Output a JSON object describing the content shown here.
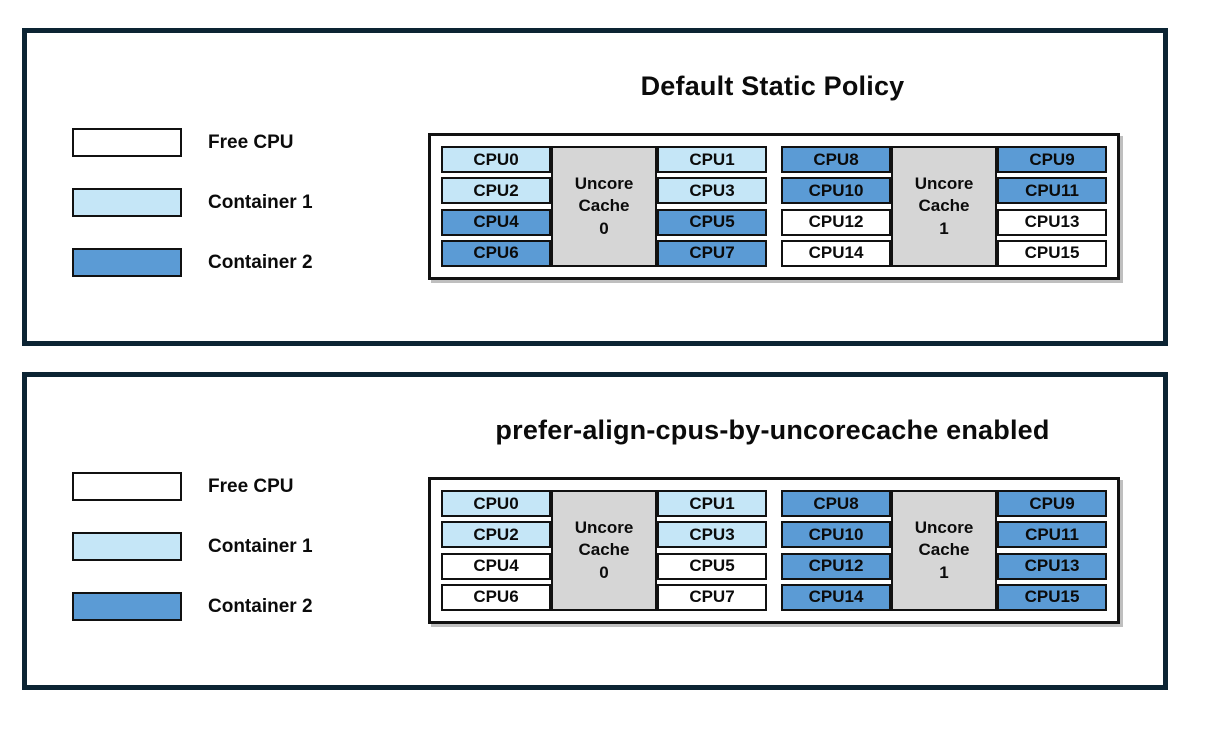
{
  "colors": {
    "free": "#ffffff",
    "container1": "#c5e6f7",
    "container2": "#5b9bd5",
    "uncore": "#d6d6d6",
    "cell_border": "#111111",
    "panel_border": "#0c2433"
  },
  "legend": {
    "items": [
      {
        "label": "Free CPU",
        "state": "free"
      },
      {
        "label": "Container 1",
        "state": "container1"
      },
      {
        "label": "Container 2",
        "state": "container2"
      }
    ]
  },
  "panels": [
    {
      "title": "Default Static Policy",
      "groups": [
        {
          "uncore_lines": [
            "Uncore",
            "Cache",
            "0"
          ],
          "left": [
            {
              "label": "CPU0",
              "state": "container1"
            },
            {
              "label": "CPU2",
              "state": "container1"
            },
            {
              "label": "CPU4",
              "state": "container2"
            },
            {
              "label": "CPU6",
              "state": "container2"
            }
          ],
          "right": [
            {
              "label": "CPU1",
              "state": "container1"
            },
            {
              "label": "CPU3",
              "state": "container1"
            },
            {
              "label": "CPU5",
              "state": "container2"
            },
            {
              "label": "CPU7",
              "state": "container2"
            }
          ]
        },
        {
          "uncore_lines": [
            "Uncore",
            "Cache",
            "1"
          ],
          "left": [
            {
              "label": "CPU8",
              "state": "container2"
            },
            {
              "label": "CPU10",
              "state": "container2"
            },
            {
              "label": "CPU12",
              "state": "free"
            },
            {
              "label": "CPU14",
              "state": "free"
            }
          ],
          "right": [
            {
              "label": "CPU9",
              "state": "container2"
            },
            {
              "label": "CPU11",
              "state": "container2"
            },
            {
              "label": "CPU13",
              "state": "free"
            },
            {
              "label": "CPU15",
              "state": "free"
            }
          ]
        }
      ]
    },
    {
      "title": "prefer-align-cpus-by-uncorecache enabled",
      "groups": [
        {
          "uncore_lines": [
            "Uncore",
            "Cache",
            "0"
          ],
          "left": [
            {
              "label": "CPU0",
              "state": "container1"
            },
            {
              "label": "CPU2",
              "state": "container1"
            },
            {
              "label": "CPU4",
              "state": "free"
            },
            {
              "label": "CPU6",
              "state": "free"
            }
          ],
          "right": [
            {
              "label": "CPU1",
              "state": "container1"
            },
            {
              "label": "CPU3",
              "state": "container1"
            },
            {
              "label": "CPU5",
              "state": "free"
            },
            {
              "label": "CPU7",
              "state": "free"
            }
          ]
        },
        {
          "uncore_lines": [
            "Uncore",
            "Cache",
            "1"
          ],
          "left": [
            {
              "label": "CPU8",
              "state": "container2"
            },
            {
              "label": "CPU10",
              "state": "container2"
            },
            {
              "label": "CPU12",
              "state": "container2"
            },
            {
              "label": "CPU14",
              "state": "container2"
            }
          ],
          "right": [
            {
              "label": "CPU9",
              "state": "container2"
            },
            {
              "label": "CPU11",
              "state": "container2"
            },
            {
              "label": "CPU13",
              "state": "container2"
            },
            {
              "label": "CPU15",
              "state": "container2"
            }
          ]
        }
      ]
    }
  ]
}
